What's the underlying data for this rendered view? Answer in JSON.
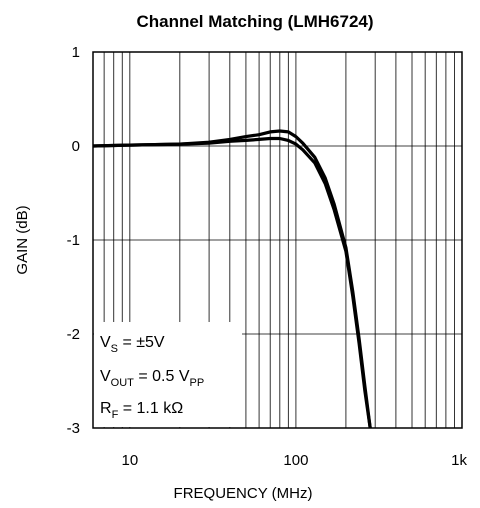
{
  "chart_data": {
    "type": "line",
    "title": "Channel Matching (LMH6724)",
    "xlabel": "FREQUENCY (MHz)",
    "ylabel": "GAIN (dB)",
    "x_scale": "log",
    "xlim": [
      6,
      1000
    ],
    "ylim": [
      -3,
      1
    ],
    "grid": true,
    "x_ticks": [
      {
        "value": 10,
        "label": "10"
      },
      {
        "value": 100,
        "label": "100"
      },
      {
        "value": 1000,
        "label": "1k"
      }
    ],
    "y_ticks": [
      {
        "value": 1,
        "label": "1"
      },
      {
        "value": 0,
        "label": "0"
      },
      {
        "value": -1,
        "label": "-1"
      },
      {
        "value": -2,
        "label": "-2"
      },
      {
        "value": -3,
        "label": "-3"
      }
    ],
    "series": [
      {
        "x": [
          6,
          10,
          20,
          30,
          40,
          50,
          60,
          70,
          80,
          90,
          100,
          110,
          130,
          150,
          170,
          200,
          220,
          240,
          260,
          280
        ],
        "y": [
          0.0,
          0.01,
          0.02,
          0.04,
          0.07,
          0.1,
          0.12,
          0.15,
          0.16,
          0.15,
          0.1,
          0.03,
          -0.12,
          -0.34,
          -0.62,
          -1.08,
          -1.55,
          -2.05,
          -2.55,
          -3.0
        ]
      },
      {
        "x": [
          6,
          10,
          20,
          30,
          40,
          50,
          60,
          70,
          80,
          90,
          100,
          110,
          130,
          150,
          170,
          200,
          220,
          240,
          260,
          280
        ],
        "y": [
          0.0,
          0.01,
          0.02,
          0.03,
          0.05,
          0.06,
          0.07,
          0.08,
          0.08,
          0.06,
          0.02,
          -0.04,
          -0.18,
          -0.4,
          -0.68,
          -1.12,
          -1.6,
          -2.1,
          -2.6,
          -3.0
        ]
      }
    ],
    "annotations": [
      {
        "main": "V",
        "sub": "S",
        "rest": " = ±5V"
      },
      {
        "main": "V",
        "sub": "OUT",
        "rest": " = 0.5 V",
        "sub2": "PP"
      },
      {
        "main": "R",
        "sub": "F",
        "rest": " = 1.1 kΩ"
      }
    ]
  }
}
